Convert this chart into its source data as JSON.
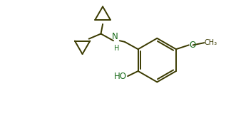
{
  "line_color": "#3a3a00",
  "bg_color": "#ffffff",
  "line_width": 1.4,
  "font_size": 8.5,
  "figsize": [
    3.24,
    1.66
  ],
  "dpi": 100,
  "xlim": [
    0,
    10
  ],
  "ylim": [
    0,
    5.1
  ],
  "labels": {
    "NH": "N\nH",
    "HO": "HO",
    "O": "O",
    "CH3": "CH₃"
  }
}
